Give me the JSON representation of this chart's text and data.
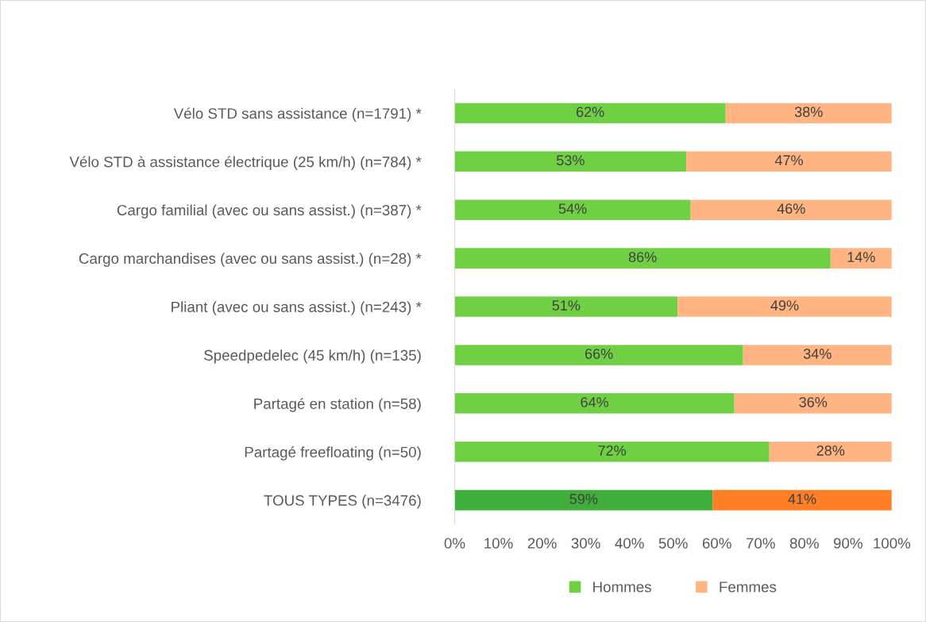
{
  "chart_data": {
    "type": "bar",
    "orientation": "horizontal",
    "stacked": true,
    "categories": [
      "Vélo STD sans assistance (n=1791) *",
      "Vélo STD à assistance électrique (25 km/h) (n=784) *",
      "Cargo familial (avec ou sans assist.) (n=387) *",
      "Cargo marchandises (avec ou sans assist.) (n=28) *",
      "Pliant (avec ou sans assist.) (n=243) *",
      "Speedpedelec (45 km/h) (n=135)",
      "Partagé en station (n=58)",
      "Partagé freefloating (n=50)",
      "TOUS TYPES (n=3476)"
    ],
    "series": [
      {
        "name": "Hommes",
        "color": "#70d044",
        "colors": [
          "#70d044",
          "#70d044",
          "#70d044",
          "#70d044",
          "#70d044",
          "#70d044",
          "#70d044",
          "#70d044",
          "#3fae3a"
        ],
        "values": [
          62,
          53,
          54,
          86,
          51,
          66,
          64,
          72,
          59
        ],
        "value_labels": [
          "62%",
          "53%",
          "54%",
          "86%",
          "51%",
          "66%",
          "64%",
          "72%",
          "59%"
        ]
      },
      {
        "name": "Femmes",
        "color": "#ffb482",
        "colors": [
          "#ffb482",
          "#ffb482",
          "#ffb482",
          "#ffb482",
          "#ffb482",
          "#ffb482",
          "#ffb482",
          "#ffb482",
          "#ff7f27"
        ],
        "values": [
          38,
          47,
          46,
          14,
          49,
          34,
          36,
          28,
          41
        ],
        "value_labels": [
          "38%",
          "47%",
          "46%",
          "14%",
          "49%",
          "34%",
          "36%",
          "28%",
          "41%"
        ]
      }
    ],
    "xlim": [
      0,
      100
    ],
    "xticks": [
      {
        "value": 0,
        "label": "0%"
      },
      {
        "value": 10,
        "label": "10%"
      },
      {
        "value": 20,
        "label": "20%"
      },
      {
        "value": 30,
        "label": "30%"
      },
      {
        "value": 40,
        "label": "40%"
      },
      {
        "value": 50,
        "label": "50%"
      },
      {
        "value": 60,
        "label": "60%"
      },
      {
        "value": 70,
        "label": "70%"
      },
      {
        "value": 80,
        "label": "80%"
      },
      {
        "value": 90,
        "label": "90%"
      },
      {
        "value": 100,
        "label": "100%"
      }
    ],
    "grid": false,
    "legend": "bottom"
  }
}
